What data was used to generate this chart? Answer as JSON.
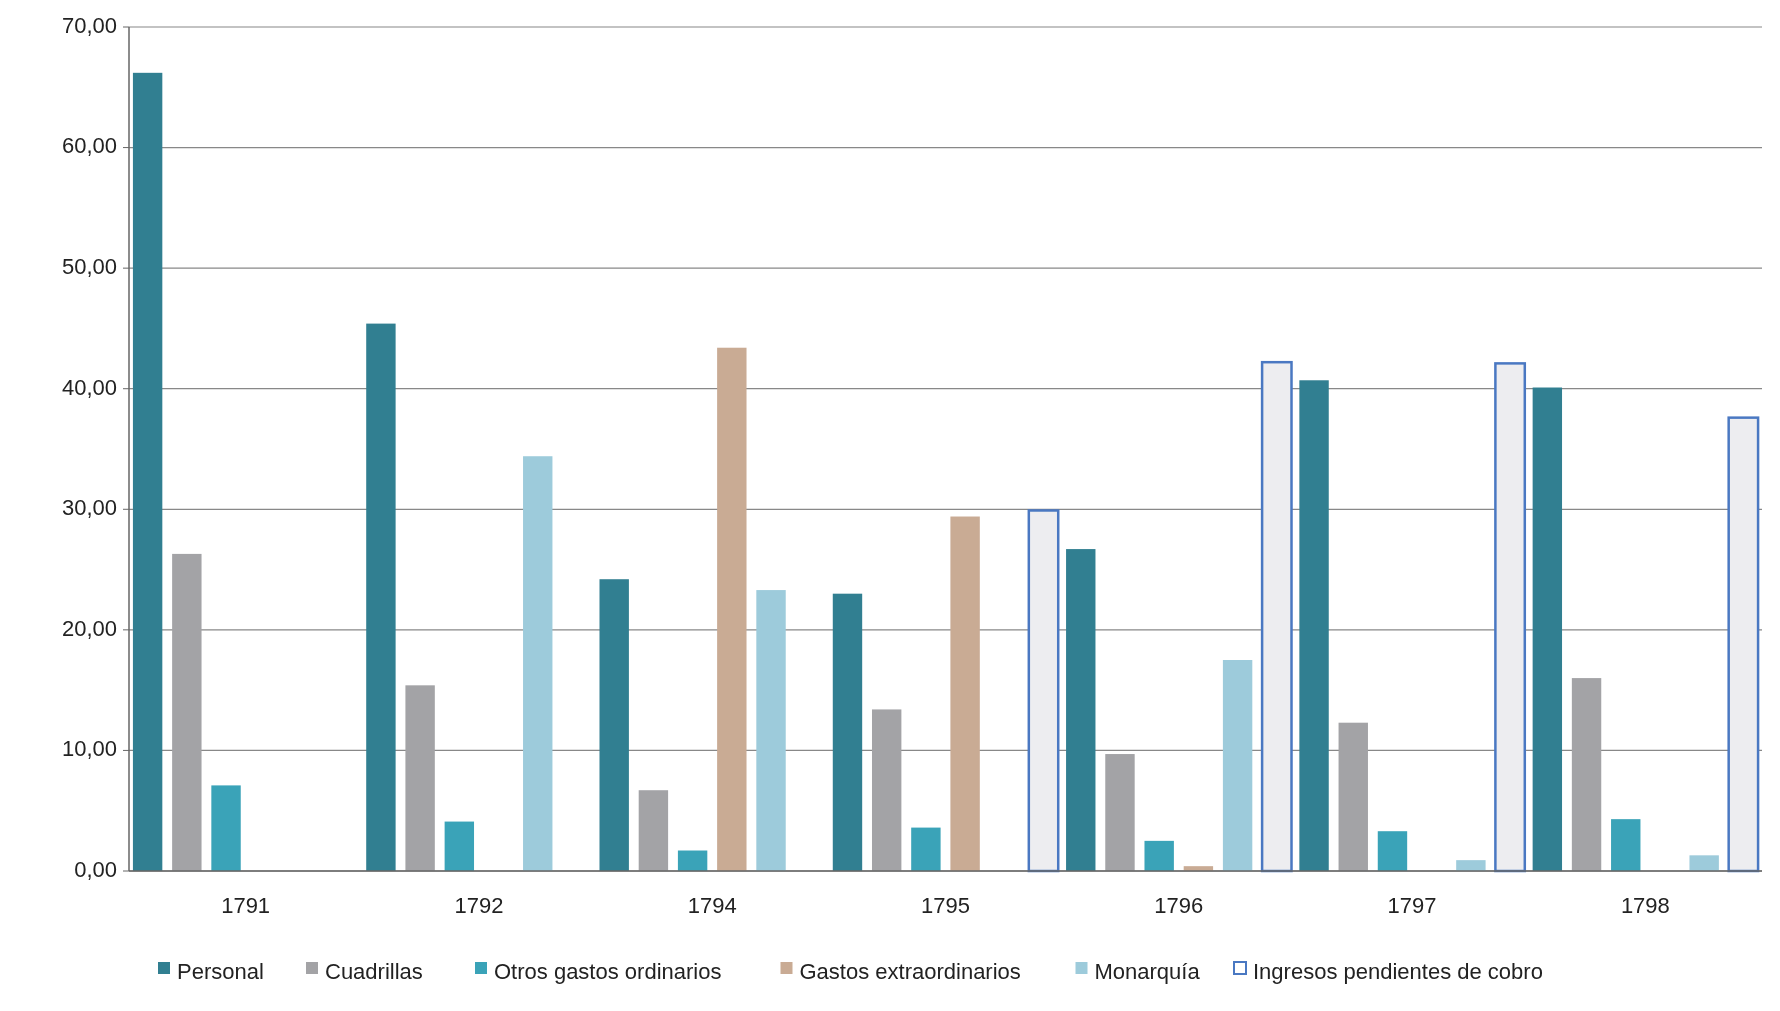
{
  "chart_data": {
    "type": "bar",
    "categories": [
      "1791",
      "1792",
      "1794",
      "1795",
      "1796",
      "1797",
      "1798"
    ],
    "series": [
      {
        "name": "Personal",
        "color": "#317f91",
        "values": [
          66.2,
          45.4,
          24.2,
          23.0,
          26.7,
          40.7,
          40.1
        ]
      },
      {
        "name": "Cuadrillas",
        "color": "#a3a3a6",
        "values": [
          26.3,
          15.4,
          6.7,
          13.4,
          9.7,
          12.3,
          16.0
        ]
      },
      {
        "name": "Otros gastos ordinarios",
        "color": "#3aa3b8",
        "values": [
          7.1,
          4.1,
          1.7,
          3.6,
          2.5,
          3.3,
          4.3
        ]
      },
      {
        "name": "Gastos extraordinarios",
        "color": "#c9ab94",
        "values": [
          null,
          null,
          43.4,
          29.4,
          0.4,
          null,
          null
        ]
      },
      {
        "name": "Monarquía",
        "color": "#9dcbdb",
        "values": [
          null,
          34.4,
          23.3,
          null,
          17.5,
          0.9,
          1.3
        ]
      },
      {
        "name": "Ingresos pendientes de cobro",
        "color": "#4a78c2",
        "values": [
          null,
          null,
          null,
          29.9,
          42.2,
          42.1,
          37.6
        ]
      }
    ],
    "ylim": [
      0,
      70
    ],
    "yticks": [
      {
        "value": 0,
        "label": "0,00"
      },
      {
        "value": 10,
        "label": "10,00"
      },
      {
        "value": 20,
        "label": "20,00"
      },
      {
        "value": 30,
        "label": "30,00"
      },
      {
        "value": 40,
        "label": "40,00"
      },
      {
        "value": 50,
        "label": "50,00"
      },
      {
        "value": 60,
        "label": "60,00"
      },
      {
        "value": 70,
        "label": "70,00"
      }
    ],
    "grid": "y",
    "legend": "bottom"
  }
}
